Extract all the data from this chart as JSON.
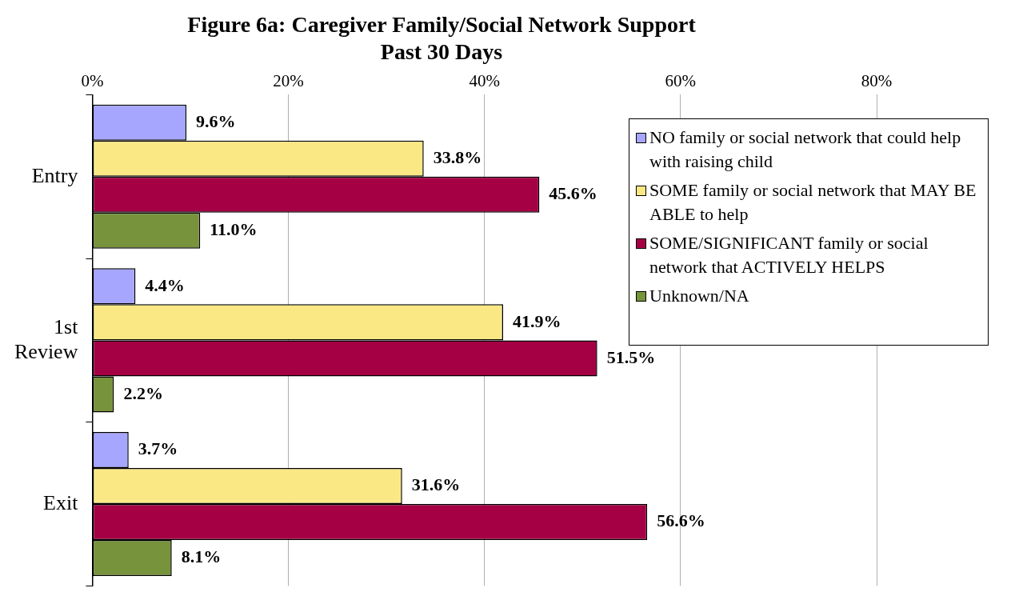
{
  "chart_data": {
    "type": "bar",
    "orientation": "horizontal",
    "title": "Figure 6a: Caregiver Family/Social Network Support",
    "subtitle": "Past 30 Days",
    "categories": [
      "Entry",
      "1st Review",
      "Exit"
    ],
    "series": [
      {
        "name": "NO family or social network that could help with raising child",
        "color": "#a6a6ff",
        "values": [
          9.6,
          4.4,
          3.7
        ],
        "value_labels": [
          "9.6%",
          "4.4%",
          "3.7%"
        ]
      },
      {
        "name": "SOME family or social network that MAY BE ABLE to help",
        "color": "#fae885",
        "values": [
          33.8,
          41.9,
          31.6
        ],
        "value_labels": [
          "33.8%",
          "41.9%",
          "31.6%"
        ]
      },
      {
        "name": "SOME/SIGNIFICANT family or social network that ACTIVELY HELPS",
        "color": "#a50044",
        "values": [
          45.6,
          51.5,
          56.6
        ],
        "value_labels": [
          "45.6%",
          "51.5%",
          "56.6%"
        ]
      },
      {
        "name": "Unknown/NA",
        "color": "#77933c",
        "values": [
          11.0,
          2.2,
          8.1
        ],
        "value_labels": [
          "11.0%",
          "2.2%",
          "8.1%"
        ]
      }
    ],
    "xlim": [
      0,
      80
    ],
    "xticks": [
      {
        "value": 0,
        "label": "0%"
      },
      {
        "value": 20,
        "label": "20%"
      },
      {
        "value": 40,
        "label": "40%"
      },
      {
        "value": 60,
        "label": "60%"
      },
      {
        "value": 80,
        "label": "80%"
      }
    ],
    "grid": "x",
    "legend": "top right"
  }
}
